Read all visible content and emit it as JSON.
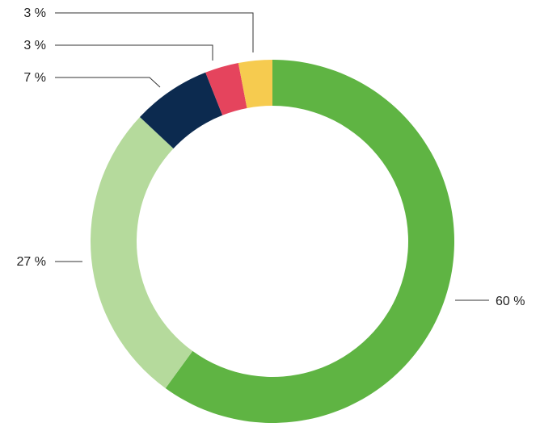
{
  "chart_data": {
    "type": "donut",
    "values": [
      60,
      27,
      7,
      3,
      3
    ],
    "value_labels": [
      "60 %",
      "27 %",
      "7 %",
      "3 %",
      "3 %"
    ],
    "colors": [
      "#5fb443",
      "#b5da9c",
      "#0c2a4f",
      "#e5445d",
      "#f6cb4f"
    ]
  }
}
